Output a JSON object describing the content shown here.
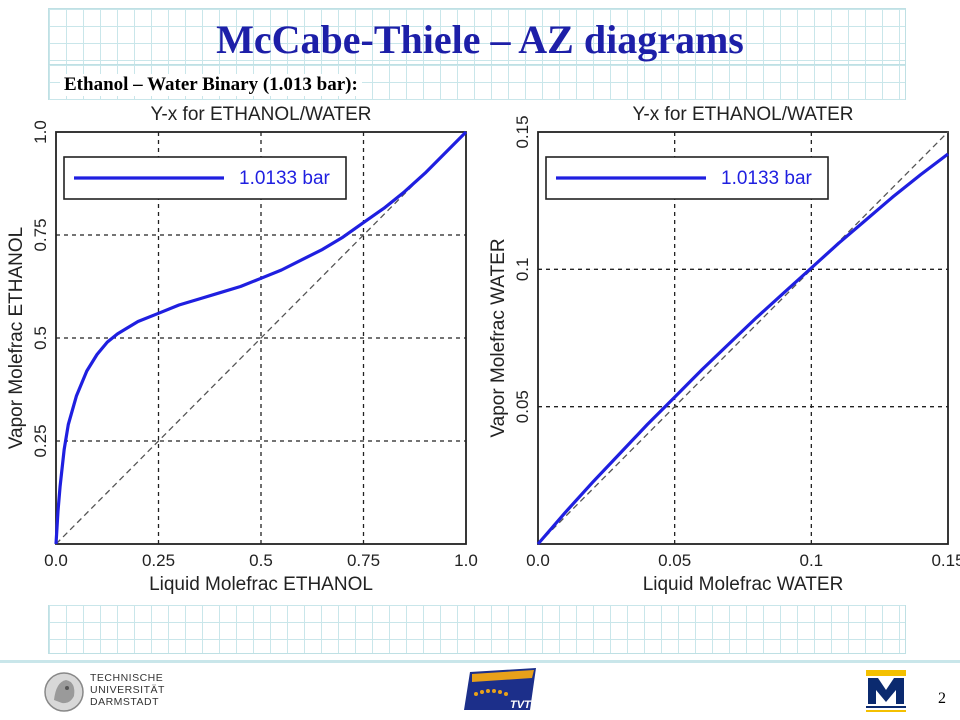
{
  "slide": {
    "title": "McCabe-Thiele – AZ diagrams",
    "subtitle": "Ethanol – Water Binary (1.013 bar):",
    "page_number": "2",
    "colors": {
      "title": "#1d1fa8",
      "curve": "#1f1fe0",
      "grid_band": "#c9e6ea"
    }
  },
  "logos": {
    "tu_darmstadt": [
      "TECHNISCHE",
      "UNIVERSITÄT",
      "DARMSTADT"
    ],
    "tvt": "TVT",
    "mines_icon": "michigan-m-logo-icon"
  },
  "chart_data": [
    {
      "type": "line",
      "title": "Y-x for ETHANOL/WATER",
      "xlabel": "Liquid Molefrac ETHANOL",
      "ylabel": "Vapor Molefrac ETHANOL",
      "xlim": [
        0,
        1
      ],
      "ylim": [
        0,
        1
      ],
      "xticks": [
        "0.0",
        "0.25",
        "0.5",
        "0.75",
        "1.0"
      ],
      "yticks": [
        "",
        "0.25",
        "0.5",
        "0.75",
        "1.0"
      ],
      "tick_values": [
        0,
        0.25,
        0.5,
        0.75,
        1.0
      ],
      "grid": true,
      "legend": "top-left",
      "series": [
        {
          "name": "1.0133 bar",
          "x": [
            0,
            0.005,
            0.01,
            0.02,
            0.03,
            0.05,
            0.075,
            0.1,
            0.125,
            0.15,
            0.2,
            0.25,
            0.3,
            0.35,
            0.4,
            0.45,
            0.5,
            0.55,
            0.6,
            0.65,
            0.7,
            0.75,
            0.8,
            0.85,
            0.9,
            0.95,
            1.0
          ],
          "y": [
            0,
            0.08,
            0.14,
            0.23,
            0.29,
            0.36,
            0.42,
            0.46,
            0.49,
            0.51,
            0.54,
            0.56,
            0.58,
            0.595,
            0.61,
            0.625,
            0.645,
            0.665,
            0.69,
            0.715,
            0.745,
            0.78,
            0.815,
            0.855,
            0.9,
            0.95,
            1.0
          ]
        }
      ],
      "diagonal": true
    },
    {
      "type": "line",
      "title": "Y-x for ETHANOL/WATER",
      "xlabel": "Liquid Molefrac WATER",
      "ylabel": "Vapor Molefrac WATER",
      "xlim": [
        0,
        0.15
      ],
      "ylim": [
        0,
        0.15
      ],
      "xticks": [
        "0.0",
        "0.05",
        "0.1",
        "0.15"
      ],
      "yticks": [
        "",
        "0.05",
        "0.1",
        "0.15"
      ],
      "tick_values": [
        0,
        0.05,
        0.1,
        0.15
      ],
      "grid": true,
      "legend": "top-left",
      "series": [
        {
          "name": "1.0133 bar",
          "x": [
            0,
            0.01,
            0.02,
            0.03,
            0.04,
            0.05,
            0.06,
            0.07,
            0.08,
            0.09,
            0.1,
            0.11,
            0.12,
            0.13,
            0.14,
            0.15
          ],
          "y": [
            0,
            0.0115,
            0.0225,
            0.033,
            0.0435,
            0.0535,
            0.0635,
            0.073,
            0.0825,
            0.0915,
            0.1005,
            0.1095,
            0.118,
            0.1265,
            0.1345,
            0.142
          ]
        }
      ],
      "diagonal": true
    }
  ]
}
